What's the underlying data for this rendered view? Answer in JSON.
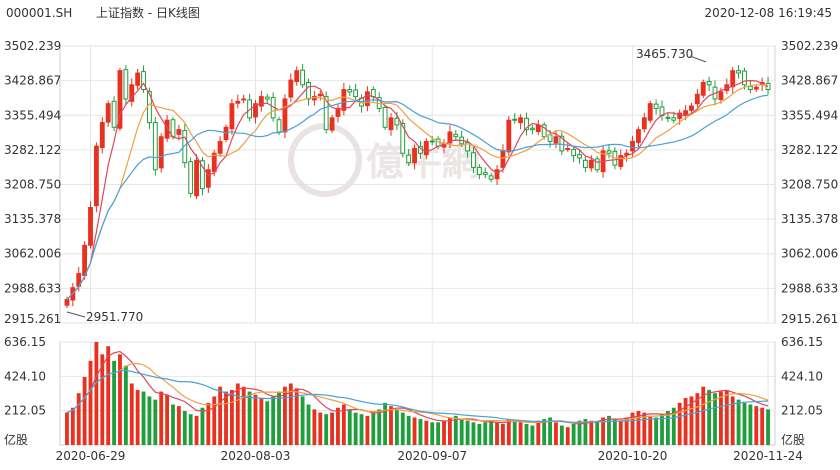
{
  "header": {
    "code": "000001.SH",
    "title": "上证指数 - 日K线图",
    "datetime": "2020-12-08 16:19:45"
  },
  "colors": {
    "up": "#e8311f",
    "down": "#1f9e3d",
    "ma5": "#e0465a",
    "ma10": "#f0a040",
    "ma20": "#4aa0d8",
    "grid": "#e6e6e6",
    "axis_text": "#333333"
  },
  "chart_data": {
    "type": "candlestick",
    "price_axis": {
      "ticks": [
        "3502.239",
        "3428.867",
        "3355.494",
        "3282.122",
        "3208.750",
        "3135.378",
        "3062.006",
        "2988.633",
        "2915.261"
      ],
      "range": [
        2915.261,
        3502.239
      ]
    },
    "volume_axis": {
      "ticks": [
        "636.15",
        "424.10",
        "212.05"
      ],
      "unit_label": "亿股",
      "range": [
        0,
        636.15
      ]
    },
    "x_labels": [
      "2020-06-29",
      "2020-08-03",
      "2020-09-07",
      "2020-10-20",
      "2020-11-24"
    ],
    "annotations": {
      "high": "3465.730",
      "low": "2951.770"
    },
    "watermark": "億牛網",
    "closes": [
      2965,
      2990,
      3020,
      3080,
      3160,
      3290,
      3340,
      3380,
      3330,
      3450,
      3390,
      3420,
      3445,
      3410,
      3340,
      3240,
      3310,
      3345,
      3310,
      3325,
      3255,
      3190,
      3260,
      3200,
      3240,
      3275,
      3300,
      3330,
      3380,
      3385,
      3390,
      3350,
      3380,
      3395,
      3390,
      3350,
      3320,
      3390,
      3430,
      3450,
      3420,
      3390,
      3395,
      3400,
      3325,
      3350,
      3370,
      3410,
      3405,
      3395,
      3375,
      3405,
      3395,
      3370,
      3330,
      3350,
      3335,
      3275,
      3255,
      3285,
      3275,
      3300,
      3300,
      3290,
      3295,
      3320,
      3310,
      3295,
      3280,
      3245,
      3230,
      3230,
      3220,
      3240,
      3280,
      3345,
      3345,
      3350,
      3325,
      3325,
      3335,
      3310,
      3300,
      3310,
      3280,
      3285,
      3270,
      3265,
      3245,
      3260,
      3240,
      3280,
      3275,
      3250,
      3270,
      3275,
      3300,
      3325,
      3350,
      3380,
      3370,
      3355,
      3350,
      3345,
      3360,
      3365,
      3375,
      3400,
      3425,
      3420,
      3390,
      3405,
      3420,
      3450,
      3445,
      3420,
      3410,
      3415,
      3425,
      3410
    ],
    "volumes": [
      200,
      230,
      320,
      420,
      520,
      636,
      560,
      610,
      520,
      560,
      490,
      380,
      340,
      330,
      300,
      280,
      330,
      310,
      250,
      240,
      210,
      190,
      180,
      230,
      260,
      300,
      360,
      330,
      340,
      380,
      360,
      330,
      310,
      290,
      270,
      300,
      330,
      360,
      380,
      350,
      300,
      250,
      220,
      200,
      190,
      200,
      230,
      250,
      220,
      200,
      190,
      180,
      200,
      220,
      260,
      240,
      220,
      200,
      180,
      170,
      160,
      150,
      140,
      140,
      150,
      170,
      180,
      160,
      150,
      140,
      130,
      140,
      150,
      140,
      130,
      160,
      150,
      140,
      130,
      120,
      150,
      160,
      170,
      140,
      120,
      110,
      130,
      150,
      160,
      150,
      140,
      170,
      180,
      160,
      150,
      170,
      200,
      210,
      200,
      180,
      170,
      190,
      210,
      230,
      260,
      290,
      300,
      320,
      360,
      340,
      320,
      330,
      340,
      300,
      280,
      260,
      250,
      240,
      230,
      220
    ]
  }
}
